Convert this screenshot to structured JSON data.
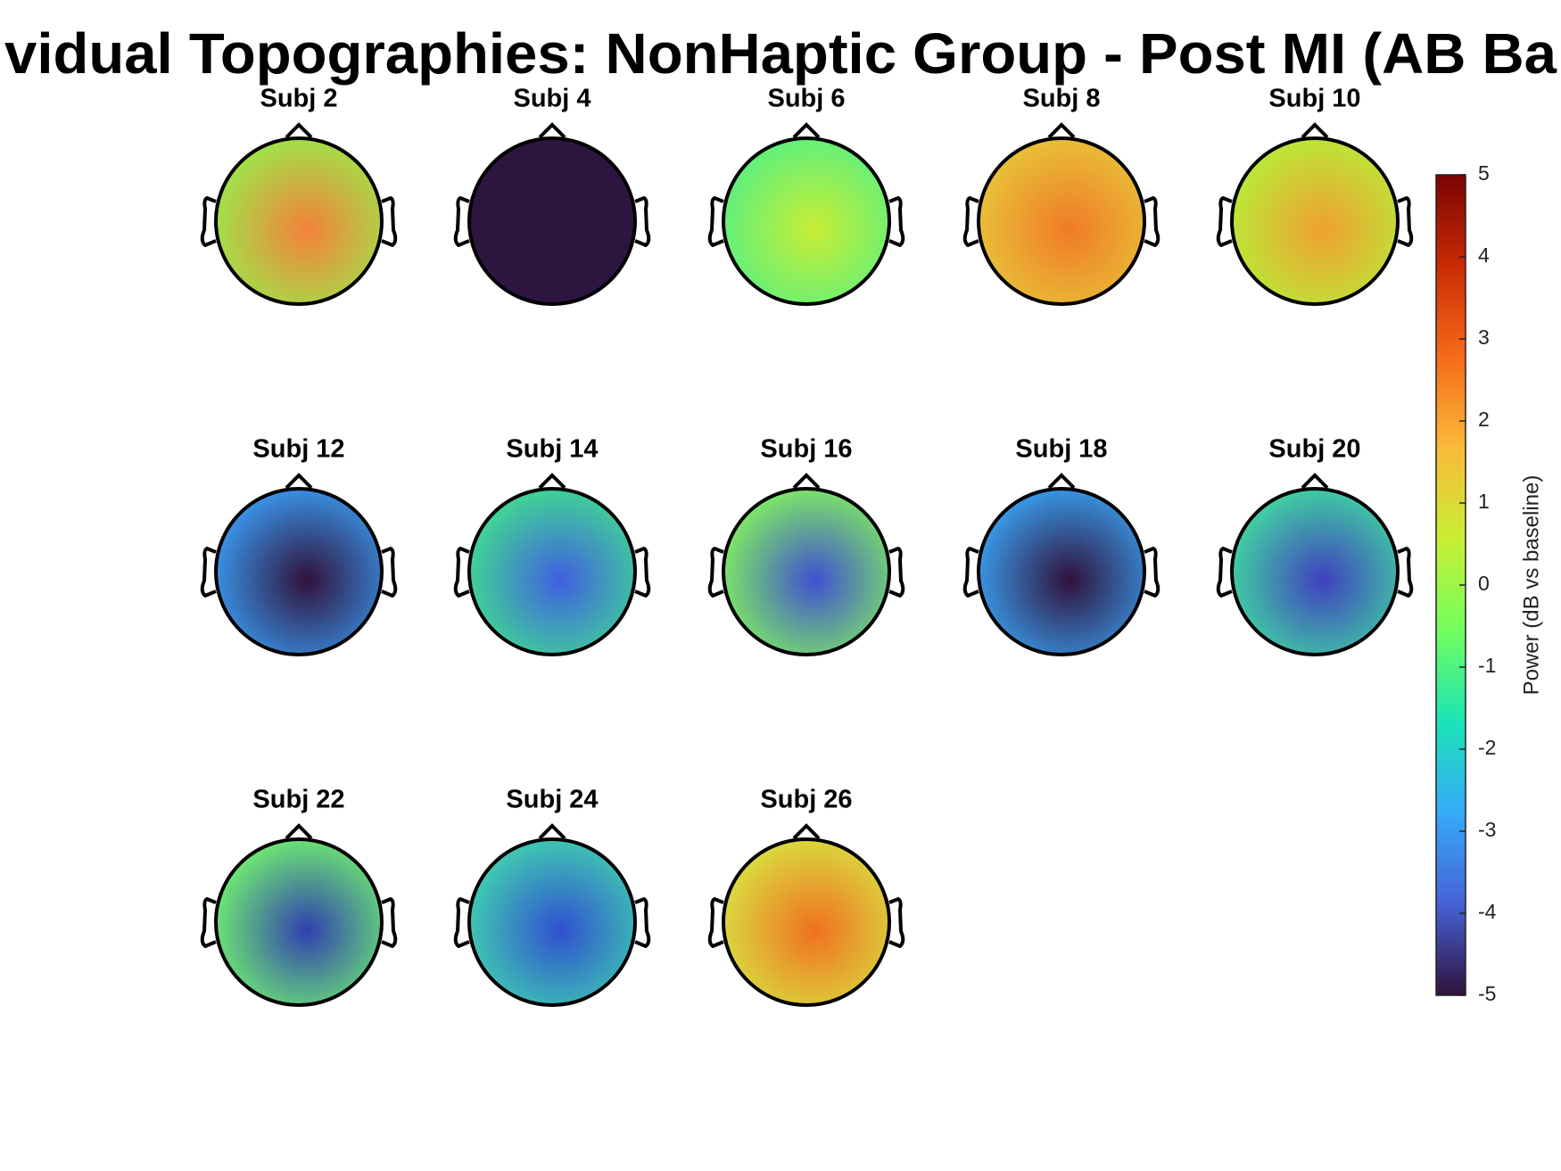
{
  "chart_data": {
    "type": "topoplot-grid",
    "title": "vidual Topographies: NonHaptic Group - Post MI (AB Ba",
    "subplots": [
      {
        "title": "Subj 2",
        "colors": [
          "#f5803a",
          "#9be84a"
        ]
      },
      {
        "title": "Subj 4",
        "colors": [
          "#2e1540",
          "#2e1540"
        ]
      },
      {
        "title": "Subj 6",
        "colors": [
          "#c8ee34",
          "#5af080"
        ]
      },
      {
        "title": "Subj 8",
        "colors": [
          "#f07a28",
          "#e8c438"
        ]
      },
      {
        "title": "Subj 10",
        "colors": [
          "#f0a030",
          "#b8ec38"
        ]
      },
      {
        "title": "Subj 12",
        "colors": [
          "#30123b",
          "#3a9af0"
        ]
      },
      {
        "title": "Subj 14",
        "colors": [
          "#4060e0",
          "#40dc90"
        ]
      },
      {
        "title": "Subj 16",
        "colors": [
          "#4050d0",
          "#80f060"
        ]
      },
      {
        "title": "Subj 18",
        "colors": [
          "#30123b",
          "#3aa0f0"
        ]
      },
      {
        "title": "Subj 20",
        "colors": [
          "#4040c0",
          "#40d8a0"
        ]
      },
      {
        "title": "Subj 22",
        "colors": [
          "#3040b0",
          "#70f070"
        ]
      },
      {
        "title": "Subj 24",
        "colors": [
          "#3050d0",
          "#40d0b0"
        ]
      },
      {
        "title": "Subj 26",
        "colors": [
          "#f07020",
          "#d8e040"
        ]
      }
    ],
    "colorbar": {
      "label": "Power (dB vs baseline)",
      "ylim": [
        -5,
        5
      ],
      "yticks": [
        -5,
        -4,
        -3,
        -2,
        -1,
        0,
        1,
        2,
        3,
        4,
        5
      ],
      "colormap": [
        "#30123b",
        "#4662d7",
        "#36aaf9",
        "#1ae4b6",
        "#72fe5e",
        "#c8ef34",
        "#faba39",
        "#f66b19",
        "#ca2a04",
        "#7a0403"
      ]
    }
  }
}
